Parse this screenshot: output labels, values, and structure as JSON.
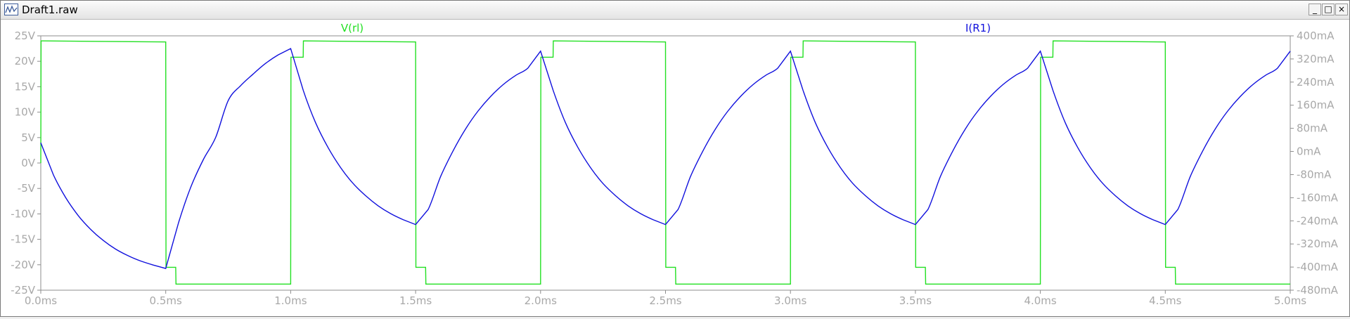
{
  "window": {
    "title": "Draft1.raw",
    "controls": {
      "minimize": "_",
      "maximize": "□",
      "close": "×"
    }
  },
  "colors": {
    "voltage": "#22e022",
    "current": "#1010dd",
    "axis_text": "#a8a8a8",
    "frame": "#8c8c8c"
  },
  "chart_data": {
    "type": "line",
    "xlabel": "",
    "ylabel": "",
    "xlim": [
      0,
      5
    ],
    "x_ticks": [
      "0.0ms",
      "0.5ms",
      "1.0ms",
      "1.5ms",
      "2.0ms",
      "2.5ms",
      "3.0ms",
      "3.5ms",
      "4.0ms",
      "4.5ms",
      "5.0ms"
    ],
    "y_left": {
      "lim": [
        -25,
        25
      ],
      "ticks": [
        "25V",
        "20V",
        "15V",
        "10V",
        "5V",
        "0V",
        "-5V",
        "-10V",
        "-15V",
        "-20V",
        "-25V"
      ]
    },
    "y_right": {
      "lim": [
        -480,
        400
      ],
      "ticks": [
        "400mA",
        "320mA",
        "240mA",
        "160mA",
        "80mA",
        "0mA",
        "-80mA",
        "-160mA",
        "-240mA",
        "-320mA",
        "-400mA",
        "-480mA"
      ]
    },
    "grid": false,
    "series": [
      {
        "name": "V(rl)",
        "axis": "left",
        "x": [
          0,
          0.001,
          0.01,
          0.5,
          0.501,
          0.505,
          0.54,
          0.541,
          1.0,
          1.001,
          1.005,
          1.05,
          1.051,
          1.5,
          1.501,
          1.505,
          1.54,
          1.541,
          2.0,
          2.001,
          2.005,
          2.05,
          2.051,
          2.5,
          2.501,
          2.505,
          2.54,
          2.541,
          3.0,
          3.001,
          3.005,
          3.05,
          3.051,
          3.5,
          3.501,
          3.505,
          3.54,
          3.541,
          4.0,
          4.001,
          4.005,
          4.05,
          4.051,
          4.5,
          4.501,
          4.505,
          4.54,
          4.541,
          5.0
        ],
        "y": [
          0,
          24.0,
          24.0,
          23.8,
          -20.5,
          -20.5,
          -20.5,
          -23.8,
          -23.8,
          20.8,
          20.8,
          20.8,
          24.0,
          23.8,
          -20.5,
          -20.5,
          -20.5,
          -23.8,
          -23.8,
          20.8,
          20.8,
          20.8,
          24.0,
          23.8,
          -20.5,
          -20.5,
          -20.5,
          -23.8,
          -23.8,
          20.8,
          20.8,
          20.8,
          24.0,
          23.8,
          -20.5,
          -20.5,
          -20.5,
          -23.8,
          -23.8,
          20.8,
          20.8,
          20.8,
          24.0,
          23.8,
          -20.5,
          -20.5,
          -20.5,
          -23.8,
          -23.8
        ]
      },
      {
        "name": "I(R1)",
        "axis": "right",
        "x": [
          0,
          0.05,
          0.1,
          0.15,
          0.2,
          0.25,
          0.3,
          0.35,
          0.4,
          0.45,
          0.5,
          0.55,
          0.6,
          0.65,
          0.7,
          0.75,
          0.8,
          0.85,
          0.9,
          0.95,
          1.0,
          1.05,
          1.1,
          1.15,
          1.2,
          1.25,
          1.3,
          1.35,
          1.4,
          1.45,
          1.5,
          1.55,
          1.6,
          1.65,
          1.7,
          1.75,
          1.8,
          1.85,
          1.9,
          1.95,
          2.0,
          2.05,
          2.1,
          2.15,
          2.2,
          2.25,
          2.3,
          2.35,
          2.4,
          2.45,
          2.5,
          2.55,
          2.6,
          2.65,
          2.7,
          2.75,
          2.8,
          2.85,
          2.9,
          2.95,
          3.0,
          3.05,
          3.1,
          3.15,
          3.2,
          3.25,
          3.3,
          3.35,
          3.4,
          3.45,
          3.5,
          3.55,
          3.6,
          3.65,
          3.7,
          3.75,
          3.8,
          3.85,
          3.9,
          3.95,
          4.0,
          4.05,
          4.1,
          4.15,
          4.2,
          4.25,
          4.3,
          4.35,
          4.4,
          4.45,
          4.5,
          4.55,
          4.6,
          4.65,
          4.7,
          4.75,
          4.8,
          4.85,
          4.9,
          4.95,
          5.0
        ],
        "y": [
          30,
          -80,
          -160,
          -222,
          -270,
          -308,
          -338,
          -361,
          -379,
          -393,
          -405,
          -250,
          -124,
          -29,
          49,
          176,
          228,
          268,
          305,
          334,
          356,
          212,
          99,
          13,
          -56,
          -111,
          -153,
          -188,
          -215,
          -236,
          -253,
          -201,
          -87,
          2,
          78,
          140,
          190,
          231,
          263,
          289,
          347,
          212,
          99,
          13,
          -56,
          -111,
          -153,
          -188,
          -215,
          -236,
          -253,
          -201,
          -87,
          2,
          78,
          140,
          190,
          231,
          263,
          289,
          347,
          212,
          99,
          13,
          -56,
          -111,
          -153,
          -188,
          -215,
          -236,
          -253,
          -201,
          -87,
          2,
          78,
          140,
          190,
          231,
          263,
          289,
          347,
          212,
          99,
          13,
          -56,
          -111,
          -153,
          -188,
          -215,
          -236,
          -253,
          -201,
          -87,
          2,
          78,
          140,
          190,
          231,
          263,
          289,
          347
        ]
      }
    ]
  }
}
